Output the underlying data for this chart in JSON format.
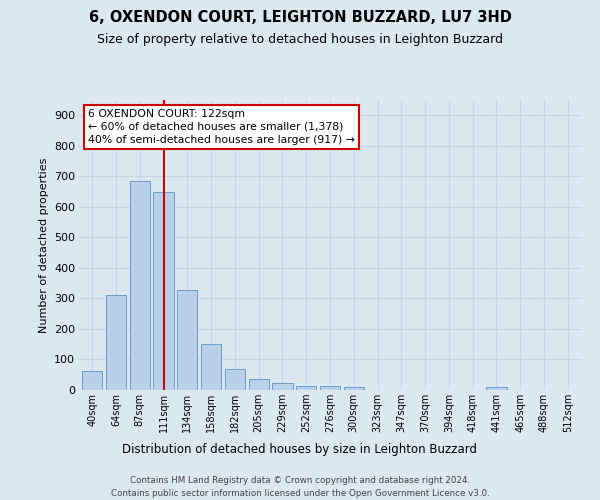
{
  "title1": "6, OXENDON COURT, LEIGHTON BUZZARD, LU7 3HD",
  "title2": "Size of property relative to detached houses in Leighton Buzzard",
  "xlabel": "Distribution of detached houses by size in Leighton Buzzard",
  "ylabel": "Number of detached properties",
  "footer1": "Contains HM Land Registry data © Crown copyright and database right 2024.",
  "footer2": "Contains public sector information licensed under the Open Government Licence v3.0.",
  "categories": [
    "40sqm",
    "64sqm",
    "87sqm",
    "111sqm",
    "134sqm",
    "158sqm",
    "182sqm",
    "205sqm",
    "229sqm",
    "252sqm",
    "276sqm",
    "300sqm",
    "323sqm",
    "347sqm",
    "370sqm",
    "394sqm",
    "418sqm",
    "441sqm",
    "465sqm",
    "488sqm",
    "512sqm"
  ],
  "values": [
    63,
    310,
    685,
    650,
    328,
    150,
    68,
    36,
    22,
    12,
    12,
    10,
    0,
    0,
    0,
    0,
    0,
    10,
    0,
    0,
    0
  ],
  "bar_color": "#b8d0ea",
  "bar_edge_color": "#6a9fc8",
  "vline_x_index": 3,
  "vline_color": "#cc0000",
  "annotation_line1": "6 OXENDON COURT: 122sqm",
  "annotation_line2": "← 60% of detached houses are smaller (1,378)",
  "annotation_line3": "40% of semi-detached houses are larger (917) →",
  "annotation_box_color": "#ffffff",
  "annotation_box_edge_color": "#cc0000",
  "ylim": [
    0,
    950
  ],
  "yticks": [
    0,
    100,
    200,
    300,
    400,
    500,
    600,
    700,
    800,
    900
  ],
  "grid_color": "#c8d4e8",
  "bg_color": "#dce8f0"
}
